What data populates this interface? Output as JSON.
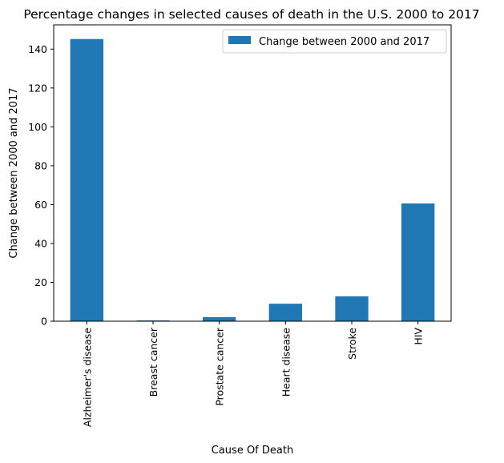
{
  "chart_data": {
    "type": "bar",
    "title": "Percentage changes in selected causes of death in the U.S. 2000 to 2017",
    "xlabel": "Cause Of Death",
    "ylabel": "Change between 2000 and 2017",
    "categories": [
      "Alzheimer's disease",
      "Breast cancer",
      "Prostate cancer",
      "Heart disease",
      "Stroke",
      "HIV"
    ],
    "series": [
      {
        "name": "Change between 2000 and 2017",
        "values": [
          145.2,
          0.4,
          2.1,
          9.0,
          12.8,
          60.6
        ],
        "color": "#1f77b4"
      }
    ],
    "ylim": [
      0,
      152.5
    ],
    "yticks": [
      0,
      20,
      40,
      60,
      80,
      100,
      120,
      140
    ],
    "grid": false,
    "legend": "top-right"
  }
}
